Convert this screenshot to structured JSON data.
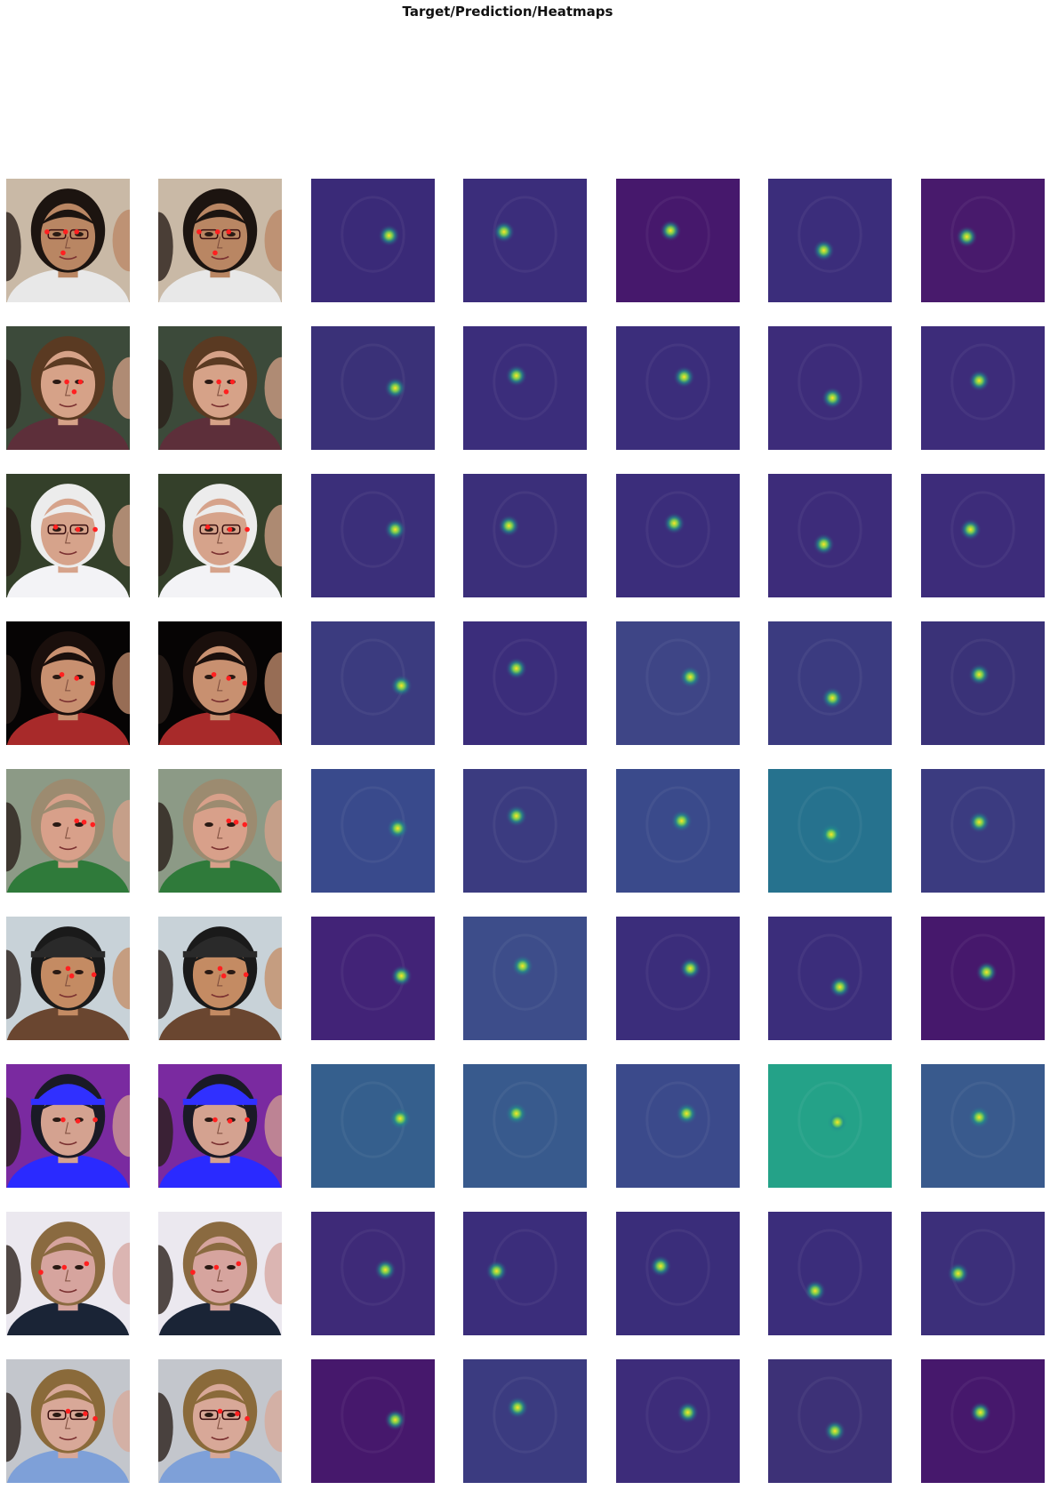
{
  "figure": {
    "title": "Target/Prediction/Heatmaps"
  },
  "colors": {
    "viridis_low": "#440154",
    "viridis_mid": "#21918c",
    "viridis_high": "#fde725",
    "keypoint": "#ff2020"
  },
  "rows": [
    {
      "subject": "man-glasses-smiling-white-shirt",
      "photo": {
        "bg": "#c9b9a6",
        "skin": "#b98663",
        "hair": "#1c1410",
        "clothes": "#e8e8e8",
        "glasses": true,
        "hat": null
      },
      "keypoints": [
        [
          0.33,
          0.43
        ],
        [
          0.48,
          0.43
        ],
        [
          0.57,
          0.43
        ],
        [
          0.46,
          0.6
        ]
      ],
      "heatmaps": [
        {
          "bg": "#3a2a78",
          "peak": [
            0.63,
            0.46
          ]
        },
        {
          "bg": "#3b2d7b",
          "peak": [
            0.33,
            0.43
          ]
        },
        {
          "bg": "#46186c",
          "peak": [
            0.44,
            0.42
          ]
        },
        {
          "bg": "#3b2d7b",
          "peak": [
            0.45,
            0.58
          ]
        },
        {
          "bg": "#481a6c",
          "peak": [
            0.37,
            0.47
          ]
        }
      ]
    },
    {
      "subject": "woman-brown-hair-necklace",
      "photo": {
        "bg": "#3c4a3a",
        "skin": "#d6a288",
        "hair": "#5a3a22",
        "clothes": "#5d2f3a",
        "glasses": false,
        "hat": null
      },
      "keypoints": [
        [
          0.49,
          0.45
        ],
        [
          0.6,
          0.45
        ],
        [
          0.55,
          0.53
        ]
      ],
      "heatmaps": [
        {
          "bg": "#3a3178",
          "peak": [
            0.68,
            0.5
          ]
        },
        {
          "bg": "#3b2d7b",
          "peak": [
            0.43,
            0.4
          ]
        },
        {
          "bg": "#3b2d7b",
          "peak": [
            0.55,
            0.41
          ]
        },
        {
          "bg": "#3d2c7a",
          "peak": [
            0.52,
            0.58
          ]
        },
        {
          "bg": "#3d2c7a",
          "peak": [
            0.47,
            0.44
          ]
        }
      ]
    },
    {
      "subject": "older-woman-white-hair",
      "photo": {
        "bg": "#34402a",
        "skin": "#d6a38b",
        "hair": "#ececec",
        "clothes": "#f3f3f6",
        "glasses": true,
        "hat": null
      },
      "keypoints": [
        [
          0.4,
          0.43
        ],
        [
          0.58,
          0.45
        ],
        [
          0.72,
          0.45
        ]
      ],
      "heatmaps": [
        {
          "bg": "#3b2f7a",
          "peak": [
            0.68,
            0.45
          ]
        },
        {
          "bg": "#3b2f7a",
          "peak": [
            0.37,
            0.42
          ]
        },
        {
          "bg": "#3b2d7b",
          "peak": [
            0.47,
            0.4
          ]
        },
        {
          "bg": "#3d2c7a",
          "peak": [
            0.45,
            0.57
          ]
        },
        {
          "bg": "#3d2c7a",
          "peak": [
            0.4,
            0.45
          ]
        }
      ]
    },
    {
      "subject": "woman-black-hair-dark-background",
      "photo": {
        "bg": "#060404",
        "skin": "#c89070",
        "hair": "#1a0f0c",
        "clothes": "#a82a2a",
        "glasses": false,
        "hat": null
      },
      "keypoints": [
        [
          0.45,
          0.43
        ],
        [
          0.57,
          0.46
        ],
        [
          0.7,
          0.5
        ]
      ],
      "heatmaps": [
        {
          "bg": "#3b3b7f",
          "peak": [
            0.73,
            0.52
          ]
        },
        {
          "bg": "#3b2d7b",
          "peak": [
            0.43,
            0.38
          ]
        },
        {
          "bg": "#3e4586",
          "peak": [
            0.6,
            0.45
          ]
        },
        {
          "bg": "#3b3b80",
          "peak": [
            0.52,
            0.62
          ]
        },
        {
          "bg": "#3a3278",
          "peak": [
            0.47,
            0.43
          ]
        }
      ]
    },
    {
      "subject": "balding-man-crowd-green-shirt",
      "photo": {
        "bg": "#8c9a86",
        "skin": "#d8a08a",
        "hair": "#9c8b70",
        "clothes": "#2f7a3a",
        "glasses": false,
        "hat": null
      },
      "keypoints": [
        [
          0.57,
          0.42
        ],
        [
          0.63,
          0.43
        ],
        [
          0.7,
          0.45
        ]
      ],
      "heatmaps": [
        {
          "bg": "#394a8c",
          "peak": [
            0.7,
            0.48
          ]
        },
        {
          "bg": "#3b3b80",
          "peak": [
            0.43,
            0.38
          ]
        },
        {
          "bg": "#3a4a8b",
          "peak": [
            0.53,
            0.42
          ]
        },
        {
          "bg": "#26728e",
          "peak": [
            0.51,
            0.53
          ]
        },
        {
          "bg": "#3b3b80",
          "peak": [
            0.47,
            0.43
          ]
        }
      ]
    },
    {
      "subject": "man-black-cap-trees",
      "photo": {
        "bg": "#c8d2d8",
        "skin": "#c48b63",
        "hair": "#1a1a1a",
        "clothes": "#6a4630",
        "glasses": false,
        "hat": "#2a2a2a"
      },
      "keypoints": [
        [
          0.5,
          0.42
        ],
        [
          0.53,
          0.48
        ],
        [
          0.71,
          0.47
        ]
      ],
      "heatmaps": [
        {
          "bg": "#422377",
          "peak": [
            0.73,
            0.48
          ]
        },
        {
          "bg": "#3d4d8a",
          "peak": [
            0.48,
            0.4
          ]
        },
        {
          "bg": "#3b2d7b",
          "peak": [
            0.6,
            0.42
          ]
        },
        {
          "bg": "#3b2d7b",
          "peak": [
            0.58,
            0.57
          ]
        },
        {
          "bg": "#46186c",
          "peak": [
            0.53,
            0.45
          ]
        }
      ]
    },
    {
      "subject": "graduate-blue-cap-crowd",
      "photo": {
        "bg": "#7a2aa0",
        "skin": "#d4a290",
        "hair": "#1a1a26",
        "clothes": "#2a2aff",
        "glasses": false,
        "hat": "#3030ff"
      },
      "keypoints": [
        [
          0.46,
          0.45
        ],
        [
          0.58,
          0.46
        ],
        [
          0.72,
          0.45
        ]
      ],
      "heatmaps": [
        {
          "bg": "#355f8d",
          "peak": [
            0.72,
            0.44
          ]
        },
        {
          "bg": "#385a8d",
          "peak": [
            0.43,
            0.4
          ]
        },
        {
          "bg": "#3b4a8b",
          "peak": [
            0.57,
            0.4
          ]
        },
        {
          "bg": "#24a288",
          "peak": [
            0.56,
            0.47
          ]
        },
        {
          "bg": "#395a8d",
          "peak": [
            0.47,
            0.43
          ]
        }
      ]
    },
    {
      "subject": "man-tilted-head-bright-background",
      "photo": {
        "bg": "#ebe8ef",
        "skin": "#d6a49e",
        "hair": "#8a6a40",
        "clothes": "#1a2436",
        "glasses": false,
        "hat": null
      },
      "keypoints": [
        [
          0.28,
          0.49
        ],
        [
          0.47,
          0.45
        ],
        [
          0.65,
          0.42
        ]
      ],
      "heatmaps": [
        {
          "bg": "#3e2a78",
          "peak": [
            0.6,
            0.47
          ]
        },
        {
          "bg": "#3b2d7b",
          "peak": [
            0.27,
            0.48
          ]
        },
        {
          "bg": "#3a2d7a",
          "peak": [
            0.36,
            0.44
          ]
        },
        {
          "bg": "#3b2d7b",
          "peak": [
            0.38,
            0.64
          ]
        },
        {
          "bg": "#3c2f7a",
          "peak": [
            0.3,
            0.5
          ]
        }
      ]
    },
    {
      "subject": "young-woman-glasses-blue-blouse",
      "photo": {
        "bg": "#c3c6cc",
        "skin": "#d8a898",
        "hair": "#8a6a3a",
        "clothes": "#7ea0d8",
        "glasses": true,
        "hat": null
      },
      "keypoints": [
        [
          0.5,
          0.42
        ],
        [
          0.64,
          0.44
        ],
        [
          0.72,
          0.48
        ]
      ],
      "heatmaps": [
        {
          "bg": "#46186c",
          "peak": [
            0.68,
            0.49
          ]
        },
        {
          "bg": "#3b3b80",
          "peak": [
            0.44,
            0.39
          ]
        },
        {
          "bg": "#3d2c7a",
          "peak": [
            0.58,
            0.43
          ]
        },
        {
          "bg": "#3d3177",
          "peak": [
            0.54,
            0.58
          ]
        },
        {
          "bg": "#46186c",
          "peak": [
            0.48,
            0.43
          ]
        }
      ]
    }
  ]
}
